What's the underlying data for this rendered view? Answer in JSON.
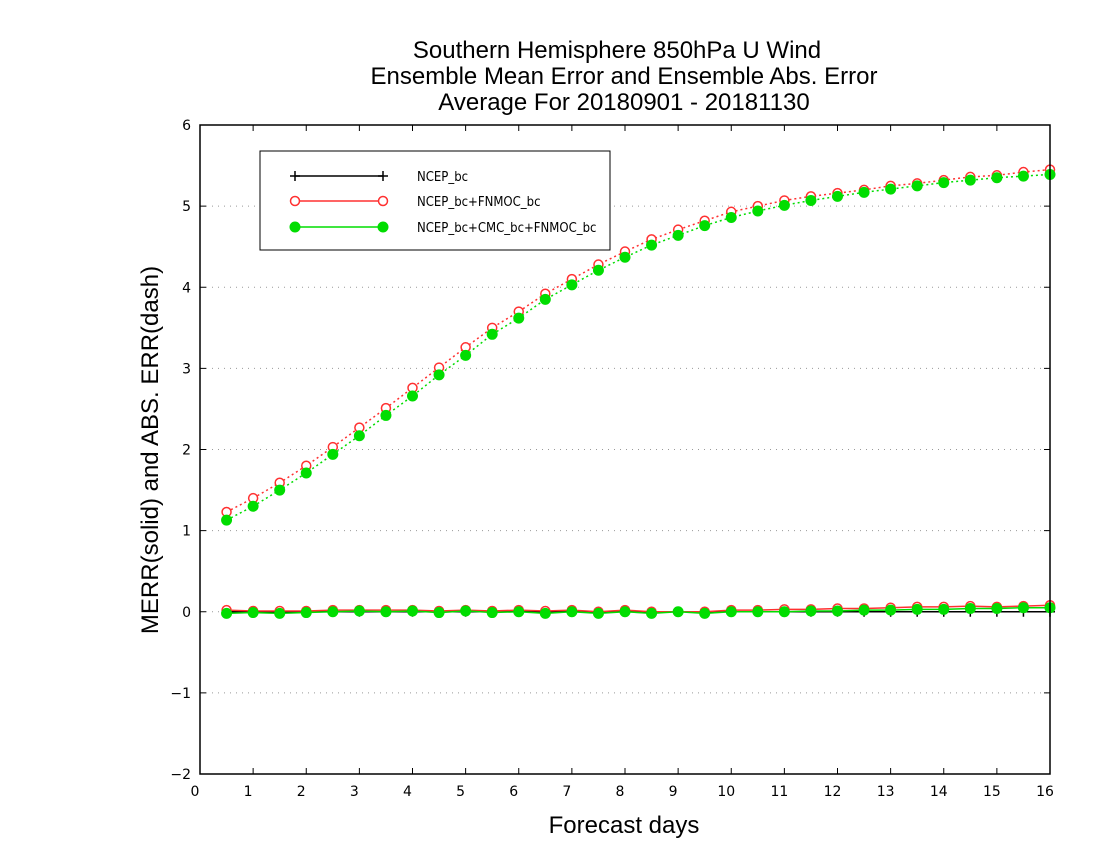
{
  "chart_data": {
    "type": "line",
    "title": [
      "Southern Hemisphere 850hPa U Wind",
      "Ensemble Mean Error and Ensemble Abs. Error",
      "Average For 20180901 - 20181130"
    ],
    "xlabel": "Forecast days",
    "ylabel": "MERR(solid) and ABS. ERR(dash)",
    "xlim": [
      0,
      16
    ],
    "ylim": [
      -2,
      6
    ],
    "xticks": [
      "0",
      "1",
      "2",
      "3",
      "4",
      "5",
      "6",
      "7",
      "8",
      "9",
      "10",
      "11",
      "12",
      "13",
      "14",
      "15",
      "16"
    ],
    "yticks": [
      "−2",
      "−1",
      "0",
      "1",
      "2",
      "3",
      "4",
      "5",
      "6"
    ],
    "grid": "horizontal-dotted",
    "legend_position": "top-left",
    "x": [
      0.5,
      1,
      1.5,
      2,
      2.5,
      3,
      3.5,
      4,
      4.5,
      5,
      5.5,
      6,
      6.5,
      7,
      7.5,
      8,
      8.5,
      9,
      9.5,
      10,
      10.5,
      11,
      11.5,
      12,
      12.5,
      13,
      13.5,
      14,
      14.5,
      15,
      15.5,
      16
    ],
    "series": [
      {
        "name": "NCEP_bc",
        "color": "#000000",
        "marker": "plus",
        "merr": [
          0,
          0,
          0,
          0,
          0,
          0,
          0,
          0,
          0,
          0,
          0,
          0,
          0,
          0,
          0,
          0,
          0,
          0,
          0,
          0,
          0,
          0,
          0,
          0,
          0,
          0,
          0,
          0,
          0,
          0,
          0,
          0
        ],
        "abs_err": []
      },
      {
        "name": "NCEP_bc+FNMOC_bc",
        "color": "#ff3030",
        "marker": "open-circle",
        "merr": [
          0.02,
          0.01,
          0.01,
          0.01,
          0.02,
          0.02,
          0.02,
          0.02,
          0.01,
          0.02,
          0.01,
          0.02,
          0.01,
          0.02,
          0.0,
          0.02,
          0.0,
          0.0,
          0.0,
          0.02,
          0.02,
          0.03,
          0.03,
          0.04,
          0.04,
          0.05,
          0.06,
          0.06,
          0.07,
          0.06,
          0.07,
          0.08
        ],
        "abs_err": [
          1.23,
          1.4,
          1.59,
          1.8,
          2.03,
          2.27,
          2.51,
          2.76,
          3.01,
          3.26,
          3.5,
          3.7,
          3.92,
          4.1,
          4.28,
          4.44,
          4.59,
          4.71,
          4.82,
          4.93,
          5.0,
          5.07,
          5.12,
          5.16,
          5.2,
          5.25,
          5.28,
          5.32,
          5.36,
          5.38,
          5.42,
          5.45
        ]
      },
      {
        "name": "NCEP_bc+CMC_bc+FNMOC_bc",
        "color": "#00dd00",
        "marker": "filled-circle",
        "merr": [
          -0.02,
          -0.01,
          -0.02,
          -0.01,
          0.0,
          0.01,
          0.0,
          0.01,
          -0.01,
          0.01,
          -0.01,
          0.0,
          -0.02,
          0.0,
          -0.02,
          0.0,
          -0.02,
          0.0,
          -0.02,
          0.0,
          0.0,
          0.0,
          0.01,
          0.01,
          0.02,
          0.02,
          0.03,
          0.03,
          0.04,
          0.04,
          0.05,
          0.05
        ],
        "abs_err": [
          1.13,
          1.3,
          1.5,
          1.71,
          1.94,
          2.17,
          2.42,
          2.66,
          2.92,
          3.16,
          3.42,
          3.62,
          3.85,
          4.03,
          4.21,
          4.37,
          4.52,
          4.64,
          4.76,
          4.86,
          4.94,
          5.01,
          5.07,
          5.12,
          5.17,
          5.21,
          5.25,
          5.29,
          5.32,
          5.35,
          5.37,
          5.39
        ]
      }
    ]
  }
}
